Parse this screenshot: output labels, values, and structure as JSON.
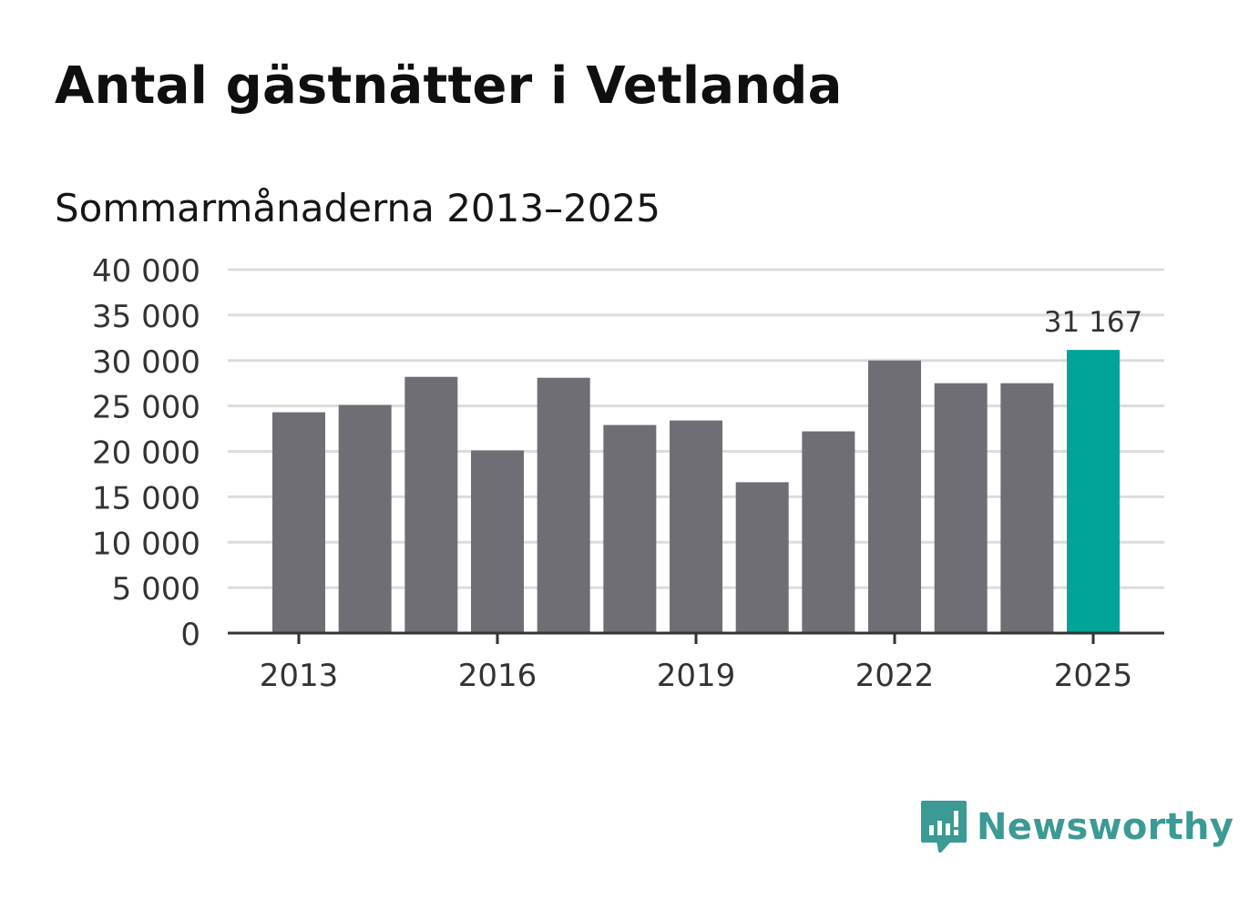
{
  "title": "Antal gästnätter i Vetlanda",
  "subtitle": "Sommarmånaderna 2013–2025",
  "brand": {
    "name": "Newsworthy",
    "icon": "bar-chart-bubble-icon",
    "color": "#3b9a94"
  },
  "colors": {
    "bar": "#6f6e74",
    "highlight": "#00a499",
    "grid": "#dcdcdc",
    "axis": "#333333"
  },
  "chart_data": {
    "type": "bar",
    "title": "Antal gästnätter i Vetlanda",
    "subtitle": "Sommarmånaderna 2013–2025",
    "xlabel": "",
    "ylabel": "",
    "categories": [
      "2013",
      "2014",
      "2015",
      "2016",
      "2017",
      "2018",
      "2019",
      "2020",
      "2021",
      "2022",
      "2023",
      "2024",
      "2025"
    ],
    "values": [
      24300,
      25100,
      28200,
      20100,
      28100,
      22900,
      23400,
      16600,
      22200,
      30000,
      27500,
      27500,
      31167
    ],
    "ylim": [
      0,
      40000
    ],
    "yticks": [
      0,
      5000,
      10000,
      15000,
      20000,
      25000,
      30000,
      35000,
      40000
    ],
    "ytick_labels": [
      "0",
      "5 000",
      "10 000",
      "15 000",
      "20 000",
      "25 000",
      "30 000",
      "35 000",
      "40 000"
    ],
    "xticks": [
      "2013",
      "2016",
      "2019",
      "2022",
      "2025"
    ],
    "highlight": {
      "category": "2025",
      "label": "31 167"
    },
    "grid": true,
    "legend": "none"
  }
}
